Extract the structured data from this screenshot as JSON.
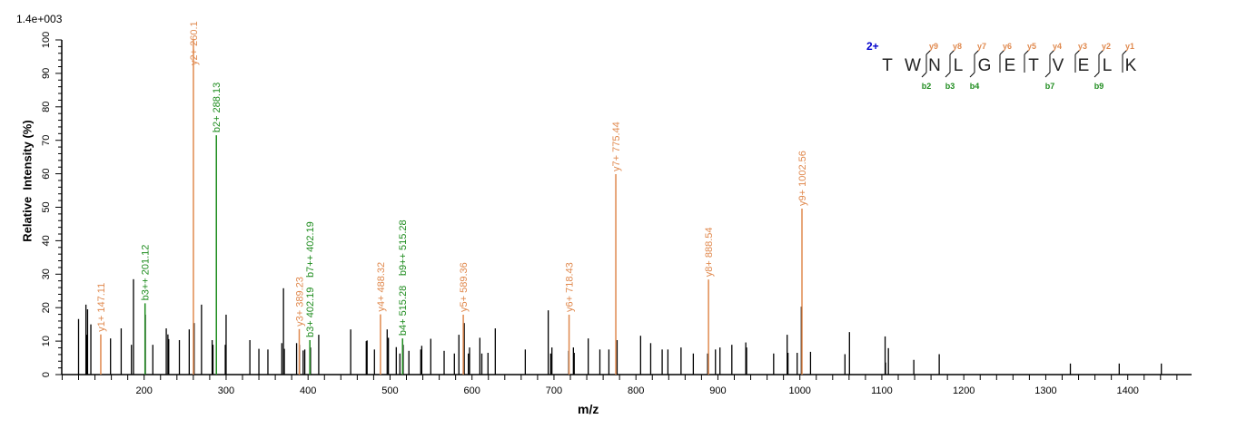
{
  "chart_data": {
    "type": "bar",
    "subtype": "mass-spectrum",
    "intensity_scale": "1.4e+003",
    "xlabel": "m/z",
    "ylabel": "Relative  Intensity (%)",
    "xlim": [
      100,
      1478
    ],
    "ylim": [
      0,
      100
    ],
    "xticks": [
      200,
      300,
      400,
      500,
      600,
      700,
      800,
      900,
      1000,
      1100,
      1200,
      1300,
      1400
    ],
    "yticks": [
      0,
      10,
      20,
      30,
      40,
      50,
      60,
      70,
      80,
      90,
      100
    ],
    "grid": false,
    "colors": {
      "y_ion": "#e0894e",
      "b_ion": "#1e8c1e",
      "unassigned": "#000000",
      "charge": "#0000cc"
    },
    "peaks": [
      [
        120,
        16.6
      ],
      [
        129,
        20.9
      ],
      [
        130,
        11.9
      ],
      [
        131,
        19.5
      ],
      [
        135,
        15
      ],
      [
        159,
        10.8
      ],
      [
        172,
        13.8
      ],
      [
        184.5,
        8.9
      ],
      [
        187,
        28.5
      ],
      [
        201.5,
        17.9
      ],
      [
        210.6,
        8.9
      ],
      [
        227,
        13.8
      ],
      [
        229,
        12
      ],
      [
        230,
        10.6
      ],
      [
        243,
        10.3
      ],
      [
        255,
        13.5
      ],
      [
        261,
        15.4
      ],
      [
        270,
        20.9
      ],
      [
        283,
        10.3
      ],
      [
        284,
        8.9
      ],
      [
        299,
        8.9
      ],
      [
        300,
        17.9
      ],
      [
        329,
        10.3
      ],
      [
        340,
        7.7
      ],
      [
        351,
        7.5
      ],
      [
        368,
        9.4
      ],
      [
        370,
        25.8
      ],
      [
        371,
        7.7
      ],
      [
        386,
        9.4
      ],
      [
        389.5,
        8.9
      ],
      [
        394,
        7.2
      ],
      [
        396,
        7.5
      ],
      [
        403,
        8.1
      ],
      [
        413,
        11.9
      ],
      [
        452,
        13.5
      ],
      [
        471,
        10
      ],
      [
        472,
        10.2
      ],
      [
        481,
        7.5
      ],
      [
        496.5,
        13.5
      ],
      [
        498,
        11
      ],
      [
        507.6,
        8.2
      ],
      [
        512,
        6.3
      ],
      [
        516,
        8.9
      ],
      [
        523,
        7.1
      ],
      [
        537.5,
        7.5
      ],
      [
        538.7,
        8.6
      ],
      [
        549.7,
        10.7
      ],
      [
        566,
        7.1
      ],
      [
        578.5,
        6.3
      ],
      [
        584,
        11.9
      ],
      [
        590.5,
        15.4
      ],
      [
        595.6,
        6.3
      ],
      [
        597,
        8.1
      ],
      [
        609.6,
        11
      ],
      [
        612,
        6.3
      ],
      [
        619.5,
        6.5
      ],
      [
        628.4,
        13.8
      ],
      [
        665,
        7.5
      ],
      [
        693,
        19.2
      ],
      [
        696,
        6.3
      ],
      [
        697.5,
        8.1
      ],
      [
        718,
        7.1
      ],
      [
        723.7,
        8.1
      ],
      [
        724.7,
        6.5
      ],
      [
        741.8,
        10.8
      ],
      [
        756,
        7.5
      ],
      [
        767,
        7.5
      ],
      [
        777,
        10.3
      ],
      [
        805.7,
        11.6
      ],
      [
        818,
        9.4
      ],
      [
        832,
        7.5
      ],
      [
        839,
        7.5
      ],
      [
        855,
        8.1
      ],
      [
        870,
        6.3
      ],
      [
        887.5,
        6.3
      ],
      [
        897,
        7.5
      ],
      [
        902.5,
        8.1
      ],
      [
        917,
        8.9
      ],
      [
        934,
        9.6
      ],
      [
        935,
        8.1
      ],
      [
        968,
        6.3
      ],
      [
        984.5,
        11.9
      ],
      [
        985.5,
        6.5
      ],
      [
        996.7,
        6.5
      ],
      [
        1001.8,
        20.3
      ],
      [
        1013,
        6.8
      ],
      [
        1055,
        6.1
      ],
      [
        1060.5,
        12.7
      ],
      [
        1104,
        11.4
      ],
      [
        1104.5,
        3.6
      ],
      [
        1108,
        7.9
      ],
      [
        1139,
        4.4
      ],
      [
        1170,
        6.1
      ],
      [
        1330,
        3.3
      ],
      [
        1389.6,
        3.3
      ],
      [
        1441,
        3.3
      ]
    ],
    "annotated_peaks": [
      {
        "mz": 147.11,
        "intensity": 12,
        "ion": "y",
        "labels": [
          "y1+ 147.11"
        ]
      },
      {
        "mz": 201.12,
        "intensity": 21.3,
        "ion": "b",
        "labels": [
          "b3++ 201.12"
        ]
      },
      {
        "mz": 260.1,
        "intensity": 100,
        "ion": "y",
        "labels": [
          "y2+ 260.1"
        ]
      },
      {
        "mz": 288.13,
        "intensity": 71.5,
        "ion": "b",
        "labels": [
          "b2+ 288.13"
        ]
      },
      {
        "mz": 389.23,
        "intensity": 13.6,
        "ion": "y",
        "labels": [
          "y3+ 389.23"
        ]
      },
      {
        "mz": 402.19,
        "intensity": 10.3,
        "ion": "b",
        "labels": [
          "b3+ 402.19",
          "b7++ 402.19"
        ]
      },
      {
        "mz": 488.32,
        "intensity": 18,
        "ion": "y",
        "labels": [
          "y4+ 488.32"
        ]
      },
      {
        "mz": 515.28,
        "intensity": 10.8,
        "ion": "b",
        "labels": [
          "b4+ 515.28",
          "b9++ 515.28"
        ]
      },
      {
        "mz": 589.36,
        "intensity": 17.9,
        "ion": "y",
        "labels": [
          "y5+ 589.36"
        ]
      },
      {
        "mz": 718.43,
        "intensity": 17.9,
        "ion": "y",
        "labels": [
          "y6+ 718.43"
        ]
      },
      {
        "mz": 775.44,
        "intensity": 59.9,
        "ion": "y",
        "labels": [
          "y7+ 775.44"
        ]
      },
      {
        "mz": 888.54,
        "intensity": 28.4,
        "ion": "y",
        "labels": [
          "y8+ 888.54"
        ]
      },
      {
        "mz": 1002.56,
        "intensity": 49.6,
        "ion": "y",
        "labels": [
          "y9+ 1002.56"
        ]
      }
    ],
    "sequence": {
      "charge": "2+",
      "residues": [
        "T",
        "W",
        "N",
        "L",
        "G",
        "E",
        "T",
        "V",
        "E",
        "L",
        "K"
      ],
      "cleavages": [
        {
          "y": "y9",
          "b": "b2"
        },
        {
          "y": "y8",
          "b": "b3"
        },
        {
          "y": "y7",
          "b": "b4"
        },
        {
          "y": "y6",
          "b": ""
        },
        {
          "y": "y5",
          "b": ""
        },
        {
          "y": "y4",
          "b": "b7"
        },
        {
          "y": "y3",
          "b": ""
        },
        {
          "y": "y2",
          "b": "b9"
        },
        {
          "y": "y1",
          "b": ""
        }
      ]
    }
  }
}
